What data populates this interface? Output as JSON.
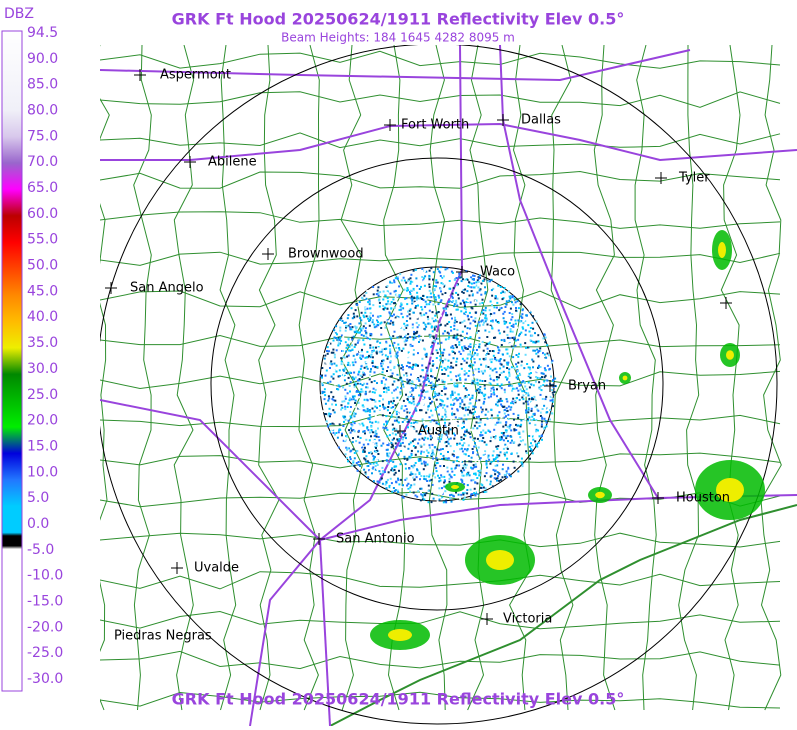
{
  "header": {
    "title": "GRK Ft Hood 20250624/1911 Reflectivity Elev 0.5°",
    "subtitle": "Beam Heights: 184 1645 4282 8095 m"
  },
  "footer": {
    "title": "GRK Ft Hood 20250624/1911 Reflectivity Elev 0.5°"
  },
  "scale": {
    "unit": "DBZ",
    "labels": [
      "94.5",
      "90.0",
      "85.0",
      "80.0",
      "75.0",
      "70.0",
      "65.0",
      "60.0",
      "55.0",
      "50.0",
      "45.0",
      "40.0",
      "35.0",
      "30.0",
      "25.0",
      "20.0",
      "15.0",
      "10.0",
      "5.0",
      "0.0",
      "-5.0",
      "-10.0",
      "-15.0",
      "-20.0",
      "-25.0",
      "-30.0"
    ]
  },
  "cities": [
    "Aspermont",
    "Fort Worth",
    "Dallas",
    "Abilene",
    "Tyler",
    "Brownwood",
    "Waco",
    "San Angelo",
    "Bryan",
    "Austin",
    "Houston",
    "San Antonio",
    "Uvalde",
    "Victoria",
    "Piedras Negras"
  ]
}
